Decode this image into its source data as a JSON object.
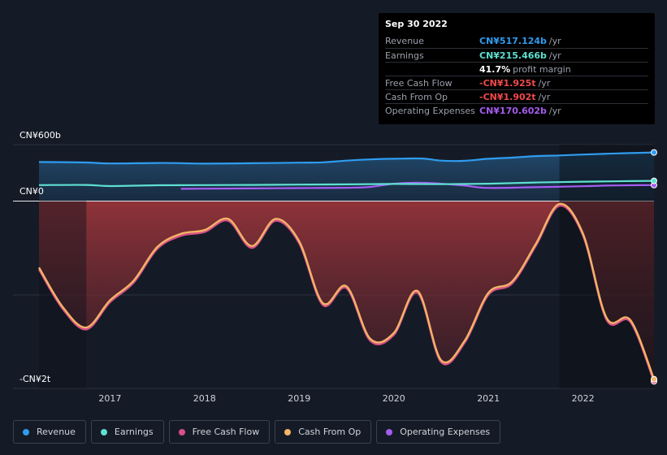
{
  "tooltip": {
    "date": "Sep 30 2022",
    "rows": [
      {
        "label": "Revenue",
        "value": "CN¥517.124b",
        "unit": "/yr",
        "color": "#2f9cf0"
      },
      {
        "label": "Earnings",
        "value": "CN¥215.466b",
        "unit": "/yr",
        "color": "#5ee0d0"
      },
      {
        "label": "",
        "value": "41.7%",
        "unit": "profit margin",
        "color": "#ffffff"
      },
      {
        "label": "Free Cash Flow",
        "value": "-CN¥1.925t",
        "unit": "/yr",
        "color": "#f04a4a"
      },
      {
        "label": "Cash From Op",
        "value": "-CN¥1.902t",
        "unit": "/yr",
        "color": "#f04a4a"
      },
      {
        "label": "Operating Expenses",
        "value": "CN¥170.602b",
        "unit": "/yr",
        "color": "#a55cf0"
      }
    ]
  },
  "legend": [
    {
      "label": "Revenue",
      "color": "#2f9cf0"
    },
    {
      "label": "Earnings",
      "color": "#5ee0d0"
    },
    {
      "label": "Free Cash Flow",
      "color": "#d94f88"
    },
    {
      "label": "Cash From Op",
      "color": "#f2b466"
    },
    {
      "label": "Operating Expenses",
      "color": "#a55cf0"
    }
  ],
  "chart_data": {
    "type": "line",
    "y_tick_labels": [
      "CN¥600b",
      "CN¥0",
      "-CN¥2t"
    ],
    "x_tick_labels": [
      "2017",
      "2018",
      "2019",
      "2020",
      "2021",
      "2022"
    ],
    "x_ticks": [
      2017,
      2018,
      2019,
      2020,
      2021,
      2022
    ],
    "xlim": [
      2016.25,
      2022.75
    ],
    "ylim": [
      -2000,
      600
    ],
    "unit": "CN¥ billions",
    "series": [
      {
        "name": "Revenue",
        "color": "#2f9cf0",
        "x": [
          2016.25,
          2016.75,
          2017.0,
          2017.5,
          2017.75,
          2018.0,
          2018.5,
          2019.0,
          2019.25,
          2019.5,
          2019.75,
          2020.0,
          2020.3,
          2020.5,
          2020.75,
          2021.0,
          2021.25,
          2021.5,
          2021.75,
          2022.0,
          2022.25,
          2022.5,
          2022.75
        ],
        "y": [
          415,
          410,
          400,
          405,
          403,
          398,
          402,
          408,
          412,
          430,
          443,
          450,
          452,
          430,
          428,
          450,
          462,
          478,
          485,
          495,
          503,
          510,
          517
        ]
      },
      {
        "name": "Earnings",
        "color": "#5ee0d0",
        "x": [
          2016.25,
          2016.75,
          2017.0,
          2017.5,
          2018.0,
          2018.5,
          2019.0,
          2019.5,
          2020.0,
          2020.5,
          2021.0,
          2021.5,
          2022.0,
          2022.5,
          2022.75
        ],
        "y": [
          170,
          172,
          160,
          168,
          170,
          172,
          175,
          178,
          182,
          180,
          185,
          198,
          206,
          212,
          215
        ]
      },
      {
        "name": "Free Cash Flow",
        "color": "#d94f88",
        "x": [
          2016.25,
          2016.5,
          2016.75,
          2017.0,
          2017.25,
          2017.5,
          2017.75,
          2018.0,
          2018.25,
          2018.5,
          2018.75,
          2019.0,
          2019.25,
          2019.5,
          2019.75,
          2020.0,
          2020.25,
          2020.5,
          2020.75,
          2021.0,
          2021.25,
          2021.5,
          2021.75,
          2022.0,
          2022.25,
          2022.5,
          2022.75
        ],
        "y": [
          -730,
          -1150,
          -1370,
          -1080,
          -870,
          -510,
          -370,
          -330,
          -210,
          -500,
          -210,
          -450,
          -1110,
          -930,
          -1490,
          -1430,
          -980,
          -1720,
          -1510,
          -1000,
          -880,
          -480,
          -50,
          -370,
          -1270,
          -1290,
          -1925
        ]
      },
      {
        "name": "Cash From Op",
        "color": "#f2b466",
        "x": [
          2016.25,
          2016.5,
          2016.75,
          2017.0,
          2017.25,
          2017.5,
          2017.75,
          2018.0,
          2018.25,
          2018.5,
          2018.75,
          2019.0,
          2019.25,
          2019.5,
          2019.75,
          2020.0,
          2020.25,
          2020.5,
          2020.75,
          2021.0,
          2021.25,
          2021.5,
          2021.75,
          2022.0,
          2022.25,
          2022.5,
          2022.75
        ],
        "y": [
          -710,
          -1130,
          -1350,
          -1060,
          -850,
          -490,
          -350,
          -310,
          -190,
          -480,
          -190,
          -430,
          -1090,
          -910,
          -1470,
          -1410,
          -960,
          -1700,
          -1490,
          -980,
          -860,
          -460,
          -30,
          -350,
          -1250,
          -1270,
          -1902
        ]
      },
      {
        "name": "Operating Expenses",
        "color": "#a55cf0",
        "x": [
          2017.75,
          2018.0,
          2018.5,
          2019.0,
          2019.5,
          2019.75,
          2020.0,
          2020.25,
          2020.5,
          2020.75,
          2021.0,
          2021.5,
          2022.0,
          2022.25,
          2022.5,
          2022.75
        ],
        "y": [
          130,
          132,
          135,
          138,
          142,
          150,
          185,
          195,
          185,
          165,
          140,
          148,
          158,
          165,
          168,
          170
        ]
      }
    ]
  }
}
